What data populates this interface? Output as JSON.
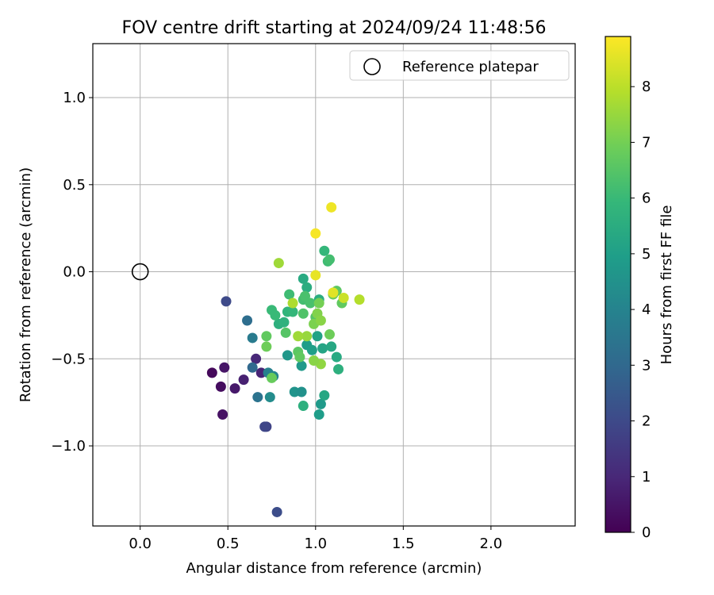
{
  "chart_data": {
    "type": "scatter",
    "title": "FOV centre drift starting at 2024/09/24 11:48:56",
    "xlabel": "Angular distance from reference (arcmin)",
    "ylabel": "Rotation from reference (arcmin)",
    "xlim": [
      -0.27,
      2.48
    ],
    "ylim": [
      -1.46,
      1.31
    ],
    "xticks": [
      "0.0",
      "0.5",
      "1.0",
      "1.5",
      "2.0"
    ],
    "xtick_values": [
      0,
      0.5,
      1.0,
      1.5,
      2.0
    ],
    "yticks": [
      "1.0",
      "0.5",
      "0.0",
      "−0.5",
      "−1.0"
    ],
    "ytick_values": [
      1.0,
      0.5,
      0.0,
      -0.5,
      -1.0
    ],
    "grid": true,
    "legend": {
      "position": "top-right",
      "label": "Reference platepar"
    },
    "reference_point": {
      "x": 0.0,
      "y": 0.0
    },
    "colorbar": {
      "label": "Hours from first FF file",
      "range": [
        0,
        8.9
      ],
      "ticks": [
        "0",
        "1",
        "2",
        "3",
        "4",
        "5",
        "6",
        "7",
        "8"
      ],
      "tick_values": [
        0,
        1,
        2,
        3,
        4,
        5,
        6,
        7,
        8
      ],
      "colormap": "viridis",
      "stops": [
        "#440154",
        "#482878",
        "#3e4989",
        "#31688e",
        "#26828e",
        "#1f9e89",
        "#35b779",
        "#6ece58",
        "#b5de2b",
        "#fde725"
      ]
    },
    "points": [
      {
        "x": 0.41,
        "y": -0.58,
        "t": 0.2
      },
      {
        "x": 0.46,
        "y": -0.66,
        "t": 0.3
      },
      {
        "x": 0.47,
        "y": -0.82,
        "t": 0.4
      },
      {
        "x": 0.48,
        "y": -0.55,
        "t": 0.5
      },
      {
        "x": 0.54,
        "y": -0.67,
        "t": 0.6
      },
      {
        "x": 0.59,
        "y": -0.62,
        "t": 0.8
      },
      {
        "x": 0.69,
        "y": -0.58,
        "t": 0.9
      },
      {
        "x": 0.66,
        "y": -0.5,
        "t": 1.0
      },
      {
        "x": 0.72,
        "y": -0.89,
        "t": 1.8
      },
      {
        "x": 0.71,
        "y": -0.89,
        "t": 1.9
      },
      {
        "x": 0.49,
        "y": -0.17,
        "t": 2.0
      },
      {
        "x": 0.78,
        "y": -1.38,
        "t": 2.1
      },
      {
        "x": 0.64,
        "y": -0.55,
        "t": 3.0
      },
      {
        "x": 0.61,
        "y": -0.28,
        "t": 3.2
      },
      {
        "x": 0.67,
        "y": -0.72,
        "t": 3.4
      },
      {
        "x": 0.64,
        "y": -0.38,
        "t": 3.7
      },
      {
        "x": 0.73,
        "y": -0.58,
        "t": 3.9
      },
      {
        "x": 0.76,
        "y": -0.6,
        "t": 4.1
      },
      {
        "x": 0.74,
        "y": -0.72,
        "t": 4.3
      },
      {
        "x": 0.88,
        "y": -0.69,
        "t": 4.6
      },
      {
        "x": 0.92,
        "y": -0.69,
        "t": 4.5
      },
      {
        "x": 0.93,
        "y": -0.77,
        "t": 5.6
      },
      {
        "x": 1.02,
        "y": -0.82,
        "t": 4.9
      },
      {
        "x": 1.03,
        "y": -0.76,
        "t": 4.8
      },
      {
        "x": 1.05,
        "y": -0.71,
        "t": 5.3
      },
      {
        "x": 0.84,
        "y": -0.48,
        "t": 4.7
      },
      {
        "x": 0.92,
        "y": -0.54,
        "t": 4.8
      },
      {
        "x": 0.95,
        "y": -0.42,
        "t": 4.9
      },
      {
        "x": 0.98,
        "y": -0.45,
        "t": 5.0
      },
      {
        "x": 1.01,
        "y": -0.37,
        "t": 5.1
      },
      {
        "x": 1.04,
        "y": -0.44,
        "t": 5.2
      },
      {
        "x": 1.09,
        "y": -0.43,
        "t": 5.3
      },
      {
        "x": 1.12,
        "y": -0.49,
        "t": 5.4
      },
      {
        "x": 1.13,
        "y": -0.56,
        "t": 5.6
      },
      {
        "x": 1.02,
        "y": -0.16,
        "t": 5.5
      },
      {
        "x": 0.93,
        "y": -0.04,
        "t": 5.4
      },
      {
        "x": 0.95,
        "y": -0.09,
        "t": 5.5
      },
      {
        "x": 1.05,
        "y": 0.12,
        "t": 5.9
      },
      {
        "x": 1.07,
        "y": 0.06,
        "t": 6.1
      },
      {
        "x": 1.08,
        "y": 0.07,
        "t": 6.2
      },
      {
        "x": 0.79,
        "y": -0.3,
        "t": 5.6
      },
      {
        "x": 0.82,
        "y": -0.29,
        "t": 5.7
      },
      {
        "x": 0.84,
        "y": -0.23,
        "t": 5.8
      },
      {
        "x": 0.87,
        "y": -0.23,
        "t": 5.9
      },
      {
        "x": 0.75,
        "y": -0.22,
        "t": 6.0
      },
      {
        "x": 0.77,
        "y": -0.25,
        "t": 6.0
      },
      {
        "x": 0.85,
        "y": -0.13,
        "t": 6.1
      },
      {
        "x": 0.93,
        "y": -0.16,
        "t": 6.2
      },
      {
        "x": 0.94,
        "y": -0.14,
        "t": 6.3
      },
      {
        "x": 0.97,
        "y": -0.18,
        "t": 6.3
      },
      {
        "x": 0.93,
        "y": -0.24,
        "t": 6.4
      },
      {
        "x": 1.0,
        "y": -0.26,
        "t": 6.5
      },
      {
        "x": 0.83,
        "y": -0.35,
        "t": 6.5
      },
      {
        "x": 0.9,
        "y": -0.46,
        "t": 6.6
      },
      {
        "x": 0.91,
        "y": -0.49,
        "t": 6.7
      },
      {
        "x": 0.72,
        "y": -0.37,
        "t": 6.7
      },
      {
        "x": 0.72,
        "y": -0.43,
        "t": 6.9
      },
      {
        "x": 0.75,
        "y": -0.61,
        "t": 6.8
      },
      {
        "x": 1.12,
        "y": -0.11,
        "t": 6.6
      },
      {
        "x": 1.15,
        "y": -0.18,
        "t": 6.7
      },
      {
        "x": 1.1,
        "y": -0.13,
        "t": 6.8
      },
      {
        "x": 1.08,
        "y": -0.36,
        "t": 6.9
      },
      {
        "x": 1.02,
        "y": -0.18,
        "t": 7.0
      },
      {
        "x": 0.99,
        "y": -0.3,
        "t": 7.1
      },
      {
        "x": 1.01,
        "y": -0.24,
        "t": 7.2
      },
      {
        "x": 1.03,
        "y": -0.28,
        "t": 7.3
      },
      {
        "x": 1.03,
        "y": -0.53,
        "t": 7.4
      },
      {
        "x": 0.99,
        "y": -0.51,
        "t": 7.3
      },
      {
        "x": 0.95,
        "y": -0.37,
        "t": 7.5
      },
      {
        "x": 0.9,
        "y": -0.37,
        "t": 7.6
      },
      {
        "x": 0.79,
        "y": 0.05,
        "t": 7.6
      },
      {
        "x": 0.87,
        "y": -0.18,
        "t": 7.8
      },
      {
        "x": 1.25,
        "y": -0.16,
        "t": 7.9
      },
      {
        "x": 1.16,
        "y": -0.15,
        "t": 8.2
      },
      {
        "x": 1.1,
        "y": -0.12,
        "t": 8.5
      },
      {
        "x": 1.0,
        "y": -0.02,
        "t": 8.6
      },
      {
        "x": 1.0,
        "y": 0.22,
        "t": 8.8
      },
      {
        "x": 1.09,
        "y": 0.37,
        "t": 8.7
      }
    ]
  }
}
